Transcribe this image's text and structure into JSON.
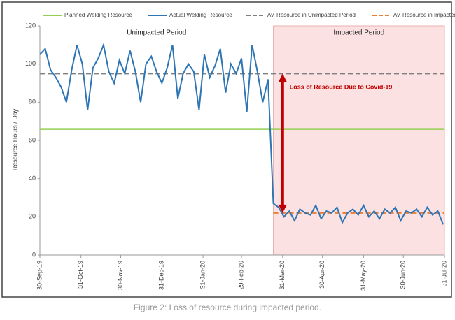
{
  "chart_data": {
    "type": "line",
    "y_label": "Resource Hours / Day",
    "caption": "Figure 2: Loss of resource during impacted period.",
    "x": [
      "2019-09-30",
      "2019-10-04",
      "2019-10-08",
      "2019-10-12",
      "2019-10-16",
      "2019-10-20",
      "2019-10-24",
      "2019-10-28",
      "2019-11-01",
      "2019-11-05",
      "2019-11-09",
      "2019-11-13",
      "2019-11-17",
      "2019-11-21",
      "2019-11-25",
      "2019-11-29",
      "2019-12-03",
      "2019-12-07",
      "2019-12-11",
      "2019-12-15",
      "2019-12-19",
      "2019-12-23",
      "2019-12-27",
      "2019-12-31",
      "2020-01-04",
      "2020-01-08",
      "2020-01-12",
      "2020-01-16",
      "2020-01-20",
      "2020-01-24",
      "2020-01-28",
      "2020-02-01",
      "2020-02-05",
      "2020-02-09",
      "2020-02-13",
      "2020-02-17",
      "2020-02-21",
      "2020-02-25",
      "2020-02-29",
      "2020-03-04",
      "2020-03-08",
      "2020-03-12",
      "2020-03-16",
      "2020-03-20",
      "2020-03-24",
      "2020-03-28",
      "2020-04-01",
      "2020-04-05",
      "2020-04-09",
      "2020-04-13",
      "2020-04-17",
      "2020-04-21",
      "2020-04-25",
      "2020-04-29",
      "2020-05-03",
      "2020-05-07",
      "2020-05-11",
      "2020-05-15",
      "2020-05-19",
      "2020-05-23",
      "2020-05-27",
      "2020-05-31",
      "2020-06-04",
      "2020-06-08",
      "2020-06-12",
      "2020-06-16",
      "2020-06-20",
      "2020-06-24",
      "2020-06-28",
      "2020-07-02",
      "2020-07-06",
      "2020-07-10",
      "2020-07-14",
      "2020-07-18",
      "2020-07-22",
      "2020-07-26",
      "2020-07-30"
    ],
    "series": [
      {
        "name": "Actual Welding Resource",
        "color": "#2e75b6",
        "values": [
          105,
          108,
          97,
          93,
          88,
          80,
          97,
          110,
          100,
          76,
          98,
          103,
          110,
          96,
          90,
          102,
          95,
          107,
          96,
          80,
          100,
          104,
          96,
          90,
          98,
          110,
          82,
          95,
          100,
          96,
          76,
          105,
          93,
          99,
          108,
          85,
          100,
          95,
          103,
          75,
          110,
          96,
          80,
          92,
          27,
          25,
          20,
          23,
          18,
          24,
          22,
          21,
          26,
          19,
          23,
          22,
          25,
          17,
          22,
          24,
          21,
          26,
          20,
          23,
          19,
          24,
          22,
          25,
          18,
          23,
          22,
          24,
          20,
          25,
          21,
          23,
          16
        ]
      }
    ],
    "reference_lines": [
      {
        "name": "Planned Welding Resource",
        "value": 66,
        "color": "#92d050",
        "dashed": false,
        "from": "2019-09-30",
        "to": "2020-07-31"
      },
      {
        "name": "Av. Resource in Unimpacted Period",
        "value": 95,
        "color": "#7f7f7f",
        "dashed": true,
        "from": "2019-09-30",
        "to": "2020-07-31"
      },
      {
        "name": "Av. Resource in Impacted Period",
        "value": 22,
        "color": "#ed7d31",
        "dashed": true,
        "from": "2020-03-24",
        "to": "2020-07-31"
      }
    ],
    "regions": [
      {
        "label": "Unimpacted Period",
        "from": "2019-09-30",
        "to": "2020-03-24",
        "color": null
      },
      {
        "label": "Impacted Period",
        "from": "2020-03-24",
        "to": "2020-07-31",
        "color": "#fbe1e1"
      }
    ],
    "arrow": {
      "label": "Loss of Resource Due to Covid-19",
      "x": "2020-03-31",
      "from": 95,
      "to": 22,
      "color": "#c00000"
    },
    "xlim": [
      "2019-09-30",
      "2020-07-31"
    ],
    "xticks": [
      {
        "value": "2019-09-30",
        "label": "30-Sep-19"
      },
      {
        "value": "2019-10-31",
        "label": "31-Oct-19"
      },
      {
        "value": "2019-11-30",
        "label": "30-Nov-19"
      },
      {
        "value": "2019-12-31",
        "label": "31-Dec-19"
      },
      {
        "value": "2020-01-31",
        "label": "31-Jan-20"
      },
      {
        "value": "2020-02-29",
        "label": "29-Feb-20"
      },
      {
        "value": "2020-03-31",
        "label": "31-Mar-20"
      },
      {
        "value": "2020-04-30",
        "label": "30-Apr-20"
      },
      {
        "value": "2020-05-31",
        "label": "31-May-20"
      },
      {
        "value": "2020-06-30",
        "label": "30-Jun-20"
      },
      {
        "value": "2020-07-31",
        "label": "31-Jul-20"
      }
    ],
    "ylim": [
      0,
      120
    ],
    "yticks": [
      0,
      20,
      40,
      60,
      80,
      100,
      120
    ],
    "grid": false
  }
}
